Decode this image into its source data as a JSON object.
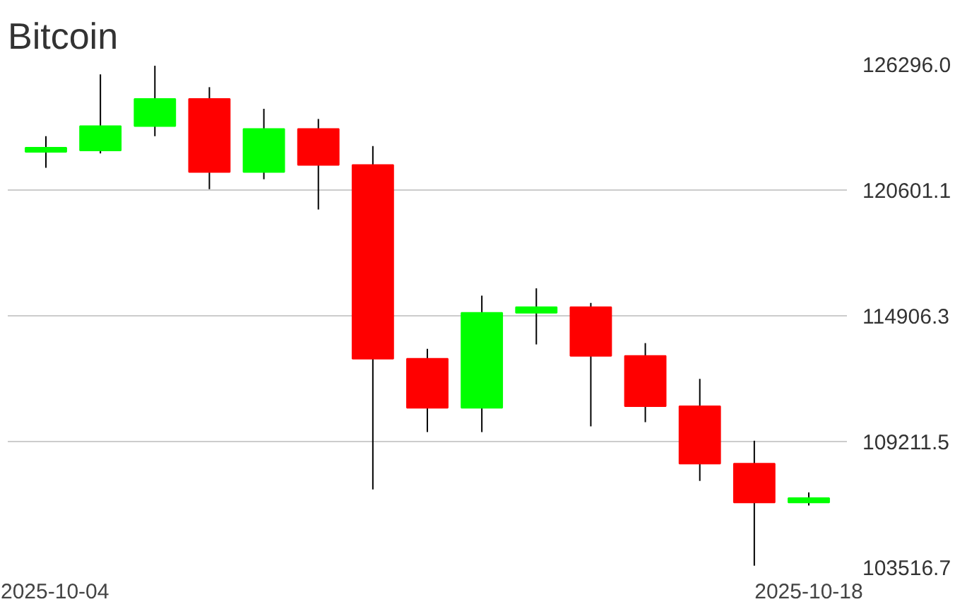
{
  "chart_data": {
    "type": "candlestick",
    "title": "Bitcoin",
    "categories": [
      "2025-10-04",
      null,
      null,
      null,
      null,
      null,
      null,
      null,
      null,
      null,
      null,
      null,
      null,
      null,
      "2025-10-18"
    ],
    "ohlc": [
      [
        122330,
        123040,
        121610,
        122520
      ],
      [
        122390,
        125840,
        122260,
        123500
      ],
      [
        123500,
        126230,
        123040,
        124730
      ],
      [
        124730,
        125260,
        120640,
        121420
      ],
      [
        121420,
        124280,
        121090,
        123370
      ],
      [
        123370,
        123820,
        119720,
        121740
      ],
      [
        121740,
        122590,
        107040,
        112960
      ],
      [
        112960,
        113410,
        109640,
        110740
      ],
      [
        110740,
        115820,
        109640,
        115040
      ],
      [
        115040,
        116150,
        113610,
        115300
      ],
      [
        115300,
        115490,
        109900,
        113090
      ],
      [
        113090,
        113670,
        110090,
        110810
      ],
      [
        110810,
        112050,
        107430,
        108210
      ],
      [
        108210,
        109250,
        103590,
        106450
      ],
      [
        106450,
        106910,
        106320,
        106650
      ]
    ],
    "colors": [
      "#00ff00",
      "#00ff00",
      "#00ff00",
      "#ff0000",
      "#00ff00",
      "#ff0000",
      "#ff0000",
      "#ff0000",
      "#00ff00",
      "#00ff00",
      "#ff0000",
      "#ff0000",
      "#ff0000",
      "#ff0000",
      "#00ff00"
    ],
    "ylim": [
      103516.7,
      126296.0
    ],
    "yticks": [
      {
        "value": 103516.7,
        "label": "103516.7"
      },
      {
        "value": 109211.5,
        "label": "109211.5"
      },
      {
        "value": 114906.3,
        "label": "114906.3"
      },
      {
        "value": 120601.1,
        "label": "120601.1"
      },
      {
        "value": 126296.0,
        "label": "126296.0"
      }
    ],
    "grid": "y"
  }
}
